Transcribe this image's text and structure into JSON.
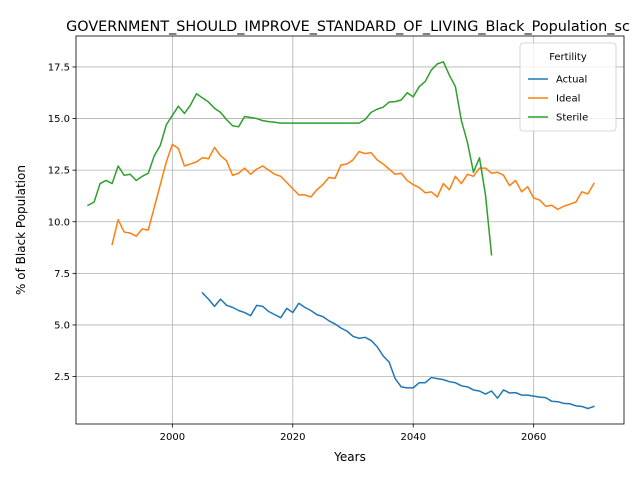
{
  "chart_data": {
    "type": "line",
    "title": "GOVERNMENT_SHOULD_IMPROVE_STANDARD_OF_LIVING_Black_Population_sc",
    "xlabel": "Years",
    "ylabel": "% of Black Population",
    "xlim": [
      1984,
      2075
    ],
    "ylim": [
      0.2,
      19.0
    ],
    "x_ticks": [
      2000,
      2020,
      2040,
      2060
    ],
    "y_ticks": [
      2.5,
      5.0,
      7.5,
      10.0,
      12.5,
      15.0,
      17.5
    ],
    "x_tick_labels": [
      "2000",
      "2020",
      "2040",
      "2060"
    ],
    "y_tick_labels": [
      "2.5",
      "5.0",
      "7.5",
      "10.0",
      "12.5",
      "15.0",
      "17.5"
    ],
    "grid": true,
    "legend": {
      "title": "Fertility",
      "placement": "top-right"
    },
    "series": [
      {
        "name": "Actual",
        "color": "#1f77b4",
        "points": [
          [
            2005,
            6.55
          ],
          [
            2006,
            6.25
          ],
          [
            2007,
            5.9
          ],
          [
            2008,
            6.25
          ],
          [
            2009,
            5.95
          ],
          [
            2010,
            5.85
          ],
          [
            2011,
            5.7
          ],
          [
            2012,
            5.6
          ],
          [
            2013,
            5.45
          ],
          [
            2014,
            5.95
          ],
          [
            2015,
            5.9
          ],
          [
            2016,
            5.65
          ],
          [
            2017,
            5.5
          ],
          [
            2018,
            5.35
          ],
          [
            2019,
            5.8
          ],
          [
            2020,
            5.6
          ],
          [
            2021,
            6.05
          ],
          [
            2022,
            5.85
          ],
          [
            2023,
            5.7
          ],
          [
            2024,
            5.5
          ],
          [
            2025,
            5.4
          ],
          [
            2026,
            5.2
          ],
          [
            2027,
            5.05
          ],
          [
            2028,
            4.85
          ],
          [
            2029,
            4.7
          ],
          [
            2030,
            4.45
          ],
          [
            2031,
            4.35
          ],
          [
            2032,
            4.4
          ],
          [
            2033,
            4.25
          ],
          [
            2034,
            3.95
          ],
          [
            2035,
            3.5
          ],
          [
            2036,
            3.2
          ],
          [
            2037,
            2.4
          ],
          [
            2038,
            2.0
          ],
          [
            2039,
            1.95
          ],
          [
            2040,
            1.95
          ],
          [
            2041,
            2.2
          ],
          [
            2042,
            2.2
          ],
          [
            2043,
            2.45
          ],
          [
            2044,
            2.4
          ],
          [
            2045,
            2.35
          ],
          [
            2046,
            2.25
          ],
          [
            2047,
            2.2
          ],
          [
            2048,
            2.05
          ],
          [
            2049,
            2.0
          ],
          [
            2050,
            1.85
          ],
          [
            2051,
            1.8
          ],
          [
            2052,
            1.65
          ],
          [
            2053,
            1.8
          ],
          [
            2054,
            1.45
          ],
          [
            2055,
            1.85
          ],
          [
            2056,
            1.7
          ],
          [
            2057,
            1.72
          ],
          [
            2058,
            1.6
          ],
          [
            2059,
            1.6
          ],
          [
            2060,
            1.55
          ],
          [
            2061,
            1.5
          ],
          [
            2062,
            1.48
          ],
          [
            2063,
            1.3
          ],
          [
            2064,
            1.28
          ],
          [
            2065,
            1.2
          ],
          [
            2066,
            1.18
          ],
          [
            2067,
            1.08
          ],
          [
            2068,
            1.05
          ],
          [
            2069,
            0.95
          ],
          [
            2070,
            1.05
          ]
        ]
      },
      {
        "name": "Ideal",
        "color": "#ff7f0e",
        "points": [
          [
            1990,
            8.9
          ],
          [
            1991,
            10.1
          ],
          [
            1992,
            9.5
          ],
          [
            1993,
            9.45
          ],
          [
            1994,
            9.3
          ],
          [
            1995,
            9.65
          ],
          [
            1996,
            9.6
          ],
          [
            1997,
            10.7
          ],
          [
            1998,
            11.8
          ],
          [
            1999,
            12.9
          ],
          [
            2000,
            13.75
          ],
          [
            2001,
            13.55
          ],
          [
            2002,
            12.7
          ],
          [
            2003,
            12.8
          ],
          [
            2004,
            12.9
          ],
          [
            2005,
            13.1
          ],
          [
            2006,
            13.05
          ],
          [
            2007,
            13.6
          ],
          [
            2008,
            13.2
          ],
          [
            2009,
            12.95
          ],
          [
            2010,
            12.25
          ],
          [
            2011,
            12.35
          ],
          [
            2012,
            12.6
          ],
          [
            2013,
            12.3
          ],
          [
            2014,
            12.55
          ],
          [
            2015,
            12.7
          ],
          [
            2016,
            12.5
          ],
          [
            2017,
            12.3
          ],
          [
            2018,
            12.2
          ],
          [
            2019,
            11.9
          ],
          [
            2020,
            11.6
          ],
          [
            2021,
            11.3
          ],
          [
            2022,
            11.3
          ],
          [
            2023,
            11.2
          ],
          [
            2024,
            11.55
          ],
          [
            2025,
            11.8
          ],
          [
            2026,
            12.15
          ],
          [
            2027,
            12.1
          ],
          [
            2028,
            12.75
          ],
          [
            2029,
            12.8
          ],
          [
            2030,
            13.0
          ],
          [
            2031,
            13.4
          ],
          [
            2032,
            13.3
          ],
          [
            2033,
            13.35
          ],
          [
            2034,
            13.0
          ],
          [
            2035,
            12.8
          ],
          [
            2036,
            12.55
          ],
          [
            2037,
            12.3
          ],
          [
            2038,
            12.35
          ],
          [
            2039,
            12.0
          ],
          [
            2040,
            11.8
          ],
          [
            2041,
            11.65
          ],
          [
            2042,
            11.4
          ],
          [
            2043,
            11.45
          ],
          [
            2044,
            11.2
          ],
          [
            2045,
            11.85
          ],
          [
            2046,
            11.55
          ],
          [
            2047,
            12.2
          ],
          [
            2048,
            11.85
          ],
          [
            2049,
            12.3
          ],
          [
            2050,
            12.2
          ],
          [
            2051,
            12.6
          ],
          [
            2052,
            12.6
          ],
          [
            2053,
            12.35
          ],
          [
            2054,
            12.4
          ],
          [
            2055,
            12.25
          ],
          [
            2056,
            11.75
          ],
          [
            2057,
            12.0
          ],
          [
            2058,
            11.45
          ],
          [
            2059,
            11.7
          ],
          [
            2060,
            11.15
          ],
          [
            2061,
            11.05
          ],
          [
            2062,
            10.75
          ],
          [
            2063,
            10.8
          ],
          [
            2064,
            10.6
          ],
          [
            2065,
            10.75
          ],
          [
            2066,
            10.85
          ],
          [
            2067,
            10.95
          ],
          [
            2068,
            11.45
          ],
          [
            2069,
            11.35
          ],
          [
            2070,
            11.85
          ]
        ]
      },
      {
        "name": "Sterile",
        "color": "#2ca02c",
        "points": [
          [
            1986,
            10.8
          ],
          [
            1987,
            10.95
          ],
          [
            1988,
            11.85
          ],
          [
            1989,
            12.0
          ],
          [
            1990,
            11.85
          ],
          [
            1991,
            12.7
          ],
          [
            1992,
            12.25
          ],
          [
            1993,
            12.3
          ],
          [
            1994,
            12.0
          ],
          [
            1995,
            12.2
          ],
          [
            1996,
            12.35
          ],
          [
            1997,
            13.2
          ],
          [
            1998,
            13.7
          ],
          [
            1999,
            14.7
          ],
          [
            2000,
            15.15
          ],
          [
            2001,
            15.6
          ],
          [
            2002,
            15.25
          ],
          [
            2003,
            15.65
          ],
          [
            2004,
            16.2
          ],
          [
            2005,
            16.0
          ],
          [
            2006,
            15.8
          ],
          [
            2007,
            15.5
          ],
          [
            2008,
            15.3
          ],
          [
            2009,
            14.95
          ],
          [
            2010,
            14.65
          ],
          [
            2011,
            14.6
          ],
          [
            2012,
            15.1
          ],
          [
            2013,
            15.05
          ],
          [
            2014,
            15.0
          ],
          [
            2015,
            14.9
          ],
          [
            2016,
            14.85
          ],
          [
            2017,
            14.82
          ],
          [
            2018,
            14.78
          ],
          [
            2019,
            14.78
          ],
          [
            2020,
            14.78
          ],
          [
            2021,
            14.78
          ],
          [
            2022,
            14.78
          ],
          [
            2023,
            14.78
          ],
          [
            2024,
            14.78
          ],
          [
            2025,
            14.78
          ],
          [
            2026,
            14.78
          ],
          [
            2027,
            14.78
          ],
          [
            2028,
            14.78
          ],
          [
            2029,
            14.78
          ],
          [
            2030,
            14.78
          ],
          [
            2031,
            14.78
          ],
          [
            2032,
            14.95
          ],
          [
            2033,
            15.3
          ],
          [
            2034,
            15.45
          ],
          [
            2035,
            15.55
          ],
          [
            2036,
            15.8
          ],
          [
            2037,
            15.82
          ],
          [
            2038,
            15.9
          ],
          [
            2039,
            16.25
          ],
          [
            2040,
            16.05
          ],
          [
            2041,
            16.55
          ],
          [
            2042,
            16.8
          ],
          [
            2043,
            17.35
          ],
          [
            2044,
            17.65
          ],
          [
            2045,
            17.75
          ],
          [
            2046,
            17.1
          ],
          [
            2047,
            16.55
          ],
          [
            2048,
            14.9
          ],
          [
            2049,
            13.85
          ],
          [
            2050,
            12.4
          ],
          [
            2051,
            13.1
          ],
          [
            2052,
            11.3
          ],
          [
            2053,
            8.4
          ]
        ]
      }
    ]
  }
}
